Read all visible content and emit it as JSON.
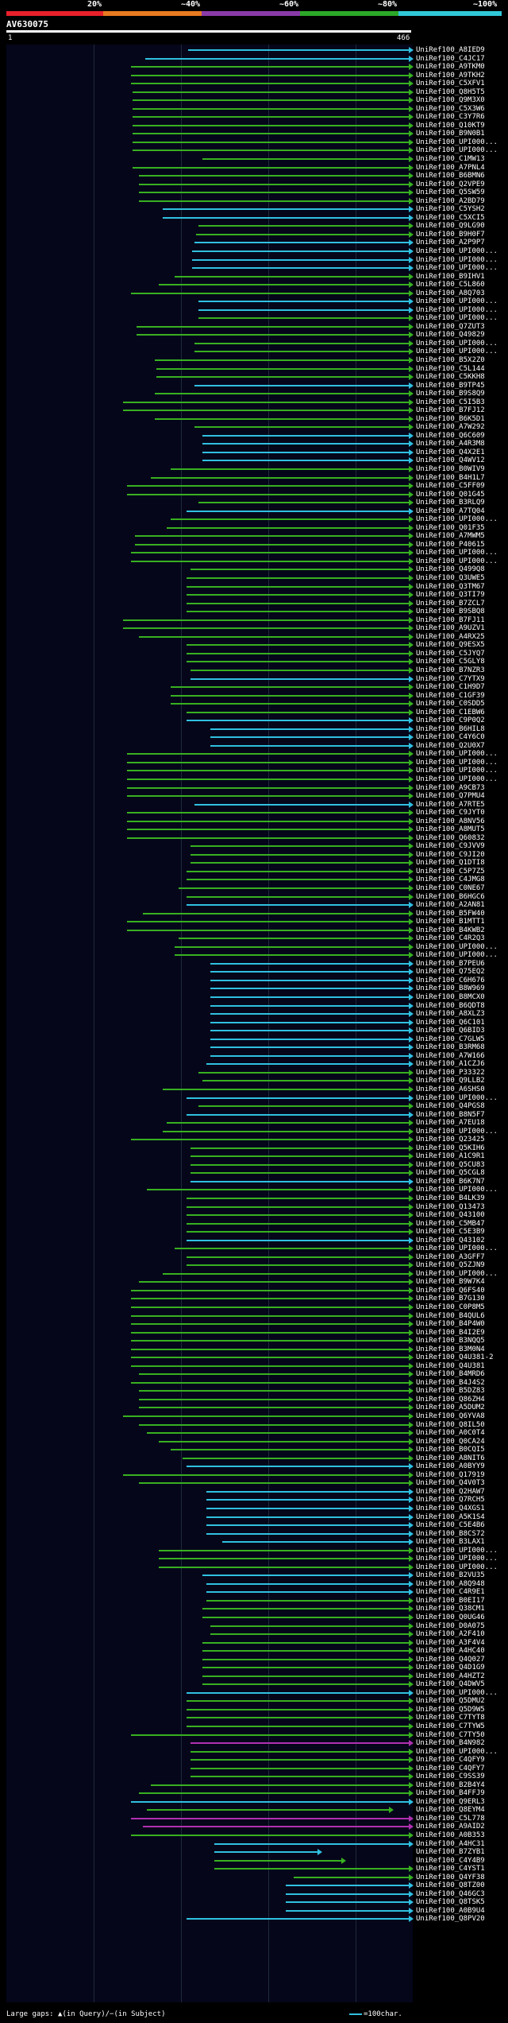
{
  "colors": {
    "red": "#e8202a",
    "orange": "#e87a20",
    "purple": "#8a3aa8",
    "green": "#2ca828",
    "cyan": "#30c8d8"
  },
  "identity_scale": {
    "labels": [
      "20%",
      "~40%",
      "~60%",
      "~80%",
      "~100%"
    ]
  },
  "query": {
    "title": "AV630075",
    "start": "1",
    "end": "466"
  },
  "hits": [
    {
      "label": "UniRef100_A8IED9",
      "c": "b"
    },
    {
      "label": "UniRef100_C4JC17",
      "c": "b"
    },
    {
      "label": "UniRef100_A9TKM0",
      "c": "g"
    },
    {
      "label": "UniRef100_A9TKH2",
      "c": "g"
    },
    {
      "label": "UniRef100_C5XFV1",
      "c": "g"
    },
    {
      "label": "UniRef100_Q8H5T5",
      "c": "g"
    },
    {
      "label": "UniRef100_Q9M3X0",
      "c": "g"
    },
    {
      "label": "UniRef100_C5X3W6",
      "c": "g"
    },
    {
      "label": "UniRef100_C3Y7R6",
      "c": "g"
    },
    {
      "label": "UniRef100_Q10KT9",
      "c": "g"
    },
    {
      "label": "UniRef100_B9N0B1",
      "c": "g"
    },
    {
      "label": "UniRef100_UPI000...",
      "c": "g"
    },
    {
      "label": "UniRef100_UPI000...",
      "c": "g"
    },
    {
      "label": "UniRef100_C1MW13",
      "c": "g"
    },
    {
      "label": "UniRef100_A7PNL4",
      "c": "g"
    },
    {
      "label": "UniRef100_B6BMN6",
      "c": "g"
    },
    {
      "label": "UniRef100_Q2VPE9",
      "c": "g"
    },
    {
      "label": "UniRef100_Q5SW59",
      "c": "g"
    },
    {
      "label": "UniRef100_A2BD79",
      "c": "g"
    },
    {
      "label": "UniRef100_C5YSH2",
      "c": "b"
    },
    {
      "label": "UniRef100_C5XCI5",
      "c": "b"
    },
    {
      "label": "UniRef100_Q9LG90",
      "c": "g"
    },
    {
      "label": "UniRef100_B9H0F7",
      "c": "g"
    },
    {
      "label": "UniRef100_A2P9P7",
      "c": "b"
    },
    {
      "label": "UniRef100_UPI000...",
      "c": "b"
    },
    {
      "label": "UniRef100_UPI000...",
      "c": "b"
    },
    {
      "label": "UniRef100_UPI000...",
      "c": "b"
    },
    {
      "label": "UniRef100_B9IHV1",
      "c": "g"
    },
    {
      "label": "UniRef100_C5L860",
      "c": "g"
    },
    {
      "label": "UniRef100_A8Q703",
      "c": "g"
    },
    {
      "label": "UniRef100_UPI000...",
      "c": "b"
    },
    {
      "label": "UniRef100_UPI000...",
      "c": "b"
    },
    {
      "label": "UniRef100_UPI000...",
      "c": "g"
    },
    {
      "label": "UniRef100_Q7ZUT3",
      "c": "g"
    },
    {
      "label": "UniRef100_Q49829",
      "c": "g"
    },
    {
      "label": "UniRef100_UPI000...",
      "c": "g"
    },
    {
      "label": "UniRef100_UPI000...",
      "c": "g"
    },
    {
      "label": "UniRef100_B5X2Z0",
      "c": "g"
    },
    {
      "label": "UniRef100_C5L144",
      "c": "g"
    },
    {
      "label": "UniRef100_C5KKH8",
      "c": "g"
    },
    {
      "label": "UniRef100_B9TP45",
      "c": "b"
    },
    {
      "label": "UniRef100_B9S8Q9",
      "c": "g"
    },
    {
      "label": "UniRef100_C5I5B3",
      "c": "g"
    },
    {
      "label": "UniRef100_B7FJ12",
      "c": "g"
    },
    {
      "label": "UniRef100_B6K5D1",
      "c": "g"
    },
    {
      "label": "UniRef100_A7W292",
      "c": "g"
    },
    {
      "label": "UniRef100_Q6C609",
      "c": "b"
    },
    {
      "label": "UniRef100_A4R3M8",
      "c": "b"
    },
    {
      "label": "UniRef100_Q4X2E1",
      "c": "b"
    },
    {
      "label": "UniRef100_Q4WV12",
      "c": "b"
    },
    {
      "label": "UniRef100_B0WIV9",
      "c": "g"
    },
    {
      "label": "UniRef100_B4H1L7",
      "c": "g"
    },
    {
      "label": "UniRef100_C5FF09",
      "c": "g"
    },
    {
      "label": "UniRef100_Q01G45",
      "c": "g"
    },
    {
      "label": "UniRef100_B3RLQ9",
      "c": "g"
    },
    {
      "label": "UniRef100_A7TQ04",
      "c": "b"
    },
    {
      "label": "UniRef100_UPI000...",
      "c": "g"
    },
    {
      "label": "UniRef100_Q01F35",
      "c": "g"
    },
    {
      "label": "UniRef100_A7MWM5",
      "c": "g"
    },
    {
      "label": "UniRef100_P40615",
      "c": "g"
    },
    {
      "label": "UniRef100_UPI000...",
      "c": "g"
    },
    {
      "label": "UniRef100_UPI000...",
      "c": "g"
    },
    {
      "label": "UniRef100_Q499Q8",
      "c": "g"
    },
    {
      "label": "UniRef100_Q3UWE5",
      "c": "g"
    },
    {
      "label": "UniRef100_Q3TM67",
      "c": "g"
    },
    {
      "label": "UniRef100_Q3TI79",
      "c": "g"
    },
    {
      "label": "UniRef100_B7ZCL7",
      "c": "g"
    },
    {
      "label": "UniRef100_B9SBQ8",
      "c": "g"
    },
    {
      "label": "UniRef100_B7FJ11",
      "c": "g"
    },
    {
      "label": "UniRef100_A9UZV1",
      "c": "g"
    },
    {
      "label": "UniRef100_A4RX25",
      "c": "g"
    },
    {
      "label": "UniRef100_Q9ESX5",
      "c": "g"
    },
    {
      "label": "UniRef100_C5JYQ7",
      "c": "g"
    },
    {
      "label": "UniRef100_C5GLY8",
      "c": "g"
    },
    {
      "label": "UniRef100_B7NZR3",
      "c": "g"
    },
    {
      "label": "UniRef100_C7YTX9",
      "c": "b"
    },
    {
      "label": "UniRef100_C1H9D7",
      "c": "g"
    },
    {
      "label": "UniRef100_C1GF39",
      "c": "g"
    },
    {
      "label": "UniRef100_C0SDD5",
      "c": "g"
    },
    {
      "label": "UniRef100_C1EBW6",
      "c": "g"
    },
    {
      "label": "UniRef100_C9P0Q2",
      "c": "b"
    },
    {
      "label": "UniRef100_B6HIL8",
      "c": "b"
    },
    {
      "label": "UniRef100_C4Y6C0",
      "c": "b"
    },
    {
      "label": "UniRef100_Q2U0X7",
      "c": "b"
    },
    {
      "label": "UniRef100_UPI000...",
      "c": "g"
    },
    {
      "label": "UniRef100_UPI000...",
      "c": "g"
    },
    {
      "label": "UniRef100_UPI000...",
      "c": "g"
    },
    {
      "label": "UniRef100_UPI000...",
      "c": "g"
    },
    {
      "label": "UniRef100_A9CB73",
      "c": "g"
    },
    {
      "label": "UniRef100_Q7PMU4",
      "c": "g"
    },
    {
      "label": "UniRef100_A7RTE5",
      "c": "b"
    },
    {
      "label": "UniRef100_C9JYT0",
      "c": "g"
    },
    {
      "label": "UniRef100_A8NV56",
      "c": "g"
    },
    {
      "label": "UniRef100_A8MUT5",
      "c": "g"
    },
    {
      "label": "UniRef100_Q60832",
      "c": "g"
    },
    {
      "label": "UniRef100_C9JVV9",
      "c": "g"
    },
    {
      "label": "UniRef100_C9JI20",
      "c": "g"
    },
    {
      "label": "UniRef100_Q1DTI8",
      "c": "g"
    },
    {
      "label": "UniRef100_C5P7Z5",
      "c": "g"
    },
    {
      "label": "UniRef100_C4JMG8",
      "c": "g"
    },
    {
      "label": "UniRef100_C0NE67",
      "c": "g"
    },
    {
      "label": "UniRef100_B6HGC6",
      "c": "g"
    },
    {
      "label": "UniRef100_A2AN81",
      "c": "b"
    },
    {
      "label": "UniRef100_B5FW40",
      "c": "g"
    },
    {
      "label": "UniRef100_B1MTT1",
      "c": "g"
    },
    {
      "label": "UniRef100_B4KWB2",
      "c": "g"
    },
    {
      "label": "UniRef100_C4R2Q3",
      "c": "g"
    },
    {
      "label": "UniRef100_UPI000...",
      "c": "g"
    },
    {
      "label": "UniRef100_UPI000...",
      "c": "g"
    },
    {
      "label": "UniRef100_B7PEU6",
      "c": "b"
    },
    {
      "label": "UniRef100_Q75EQ2",
      "c": "b"
    },
    {
      "label": "UniRef100_C6H676",
      "c": "b"
    },
    {
      "label": "UniRef100_B8W969",
      "c": "b"
    },
    {
      "label": "UniRef100_B8MCX0",
      "c": "b"
    },
    {
      "label": "UniRef100_B6QDT8",
      "c": "b"
    },
    {
      "label": "UniRef100_A8XLZ3",
      "c": "b"
    },
    {
      "label": "UniRef100_Q6C101",
      "c": "b"
    },
    {
      "label": "UniRef100_Q6BID3",
      "c": "b"
    },
    {
      "label": "UniRef100_C7GLW5",
      "c": "b"
    },
    {
      "label": "UniRef100_B3RM68",
      "c": "b"
    },
    {
      "label": "UniRef100_A7W166",
      "c": "b"
    },
    {
      "label": "UniRef100_A1CZJ6",
      "c": "b"
    },
    {
      "label": "UniRef100_P33322",
      "c": "g"
    },
    {
      "label": "UniRef100_Q9LLB2",
      "c": "g"
    },
    {
      "label": "UniRef100_A6SHS0",
      "c": "g"
    },
    {
      "label": "UniRef100_UPI000...",
      "c": "b"
    },
    {
      "label": "UniRef100_Q4PGS8",
      "c": "g"
    },
    {
      "label": "UniRef100_B8N5F7",
      "c": "b"
    },
    {
      "label": "UniRef100_A7EU18",
      "c": "g"
    },
    {
      "label": "UniRef100_UPI000...",
      "c": "g"
    },
    {
      "label": "UniRef100_Q23425",
      "c": "g"
    },
    {
      "label": "UniRef100_Q5KIH6",
      "c": "g"
    },
    {
      "label": "UniRef100_A1C9R1",
      "c": "g"
    },
    {
      "label": "UniRef100_Q5CU83",
      "c": "g"
    },
    {
      "label": "UniRef100_Q5CGL8",
      "c": "g"
    },
    {
      "label": "UniRef100_B6K7N7",
      "c": "b"
    },
    {
      "label": "UniRef100_UPI000...",
      "c": "g"
    },
    {
      "label": "UniRef100_B4LK39",
      "c": "g"
    },
    {
      "label": "UniRef100_Q13473",
      "c": "g"
    },
    {
      "label": "UniRef100_Q43100",
      "c": "g"
    },
    {
      "label": "UniRef100_C5MB47",
      "c": "g"
    },
    {
      "label": "UniRef100_C5E3B9",
      "c": "g"
    },
    {
      "label": "UniRef100_Q43102",
      "c": "b"
    },
    {
      "label": "UniRef100_UPI000...",
      "c": "g"
    },
    {
      "label": "UniRef100_A3GFF7",
      "c": "g"
    },
    {
      "label": "UniRef100_Q5ZJN9",
      "c": "g"
    },
    {
      "label": "UniRef100_UPI000...",
      "c": "g"
    },
    {
      "label": "UniRef100_B9W7K4",
      "c": "g"
    },
    {
      "label": "UniRef100_Q6FS40",
      "c": "g"
    },
    {
      "label": "UniRef100_B7G130",
      "c": "g"
    },
    {
      "label": "UniRef100_C0P8M5",
      "c": "g"
    },
    {
      "label": "UniRef100_B4QUL6",
      "c": "g"
    },
    {
      "label": "UniRef100_B4P4W0",
      "c": "g"
    },
    {
      "label": "UniRef100_B4I2E9",
      "c": "g"
    },
    {
      "label": "UniRef100_B3NQQ5",
      "c": "g"
    },
    {
      "label": "UniRef100_B3M0N4",
      "c": "g"
    },
    {
      "label": "UniRef100_Q4U381-2",
      "c": "g"
    },
    {
      "label": "UniRef100_Q4U381",
      "c": "g"
    },
    {
      "label": "UniRef100_B4MRD6",
      "c": "g"
    },
    {
      "label": "UniRef100_B4J4S2",
      "c": "g"
    },
    {
      "label": "UniRef100_B5DZ83",
      "c": "g"
    },
    {
      "label": "UniRef100_Q86ZH4",
      "c": "g"
    },
    {
      "label": "UniRef100_A5DUM2",
      "c": "g"
    },
    {
      "label": "UniRef100_Q6YVA8",
      "c": "g"
    },
    {
      "label": "UniRef100_Q8IL50",
      "c": "g"
    },
    {
      "label": "UniRef100_A0C0T4",
      "c": "g"
    },
    {
      "label": "UniRef100_Q0CA24",
      "c": "g"
    },
    {
      "label": "UniRef100_B0CQI5",
      "c": "g"
    },
    {
      "label": "UniRef100_A8NIT6",
      "c": "g"
    },
    {
      "label": "UniRef100_A0BYY9",
      "c": "b"
    },
    {
      "label": "UniRef100_Q17919",
      "c": "g"
    },
    {
      "label": "UniRef100_Q4V0T3",
      "c": "g"
    },
    {
      "label": "UniRef100_Q2HAW7",
      "c": "b"
    },
    {
      "label": "UniRef100_Q7RCH5",
      "c": "b"
    },
    {
      "label": "UniRef100_Q4XGS1",
      "c": "b"
    },
    {
      "label": "UniRef100_A5K1S4",
      "c": "b"
    },
    {
      "label": "UniRef100_C5E4B6",
      "c": "b"
    },
    {
      "label": "UniRef100_B8CS72",
      "c": "b"
    },
    {
      "label": "UniRef100_B3LAX1",
      "c": "b"
    },
    {
      "label": "UniRef100_UPI000...",
      "c": "g"
    },
    {
      "label": "UniRef100_UPI000...",
      "c": "g"
    },
    {
      "label": "UniRef100_UPI000...",
      "c": "g"
    },
    {
      "label": "UniRef100_B2VU35",
      "c": "b"
    },
    {
      "label": "UniRef100_A8Q948",
      "c": "b"
    },
    {
      "label": "UniRef100_C4R9E1",
      "c": "b"
    },
    {
      "label": "UniRef100_B0EI17",
      "c": "g"
    },
    {
      "label": "UniRef100_Q38CM1",
      "c": "g"
    },
    {
      "label": "UniRef100_Q0UG46",
      "c": "g"
    },
    {
      "label": "UniRef100_D0A075",
      "c": "g"
    },
    {
      "label": "UniRef100_A2F410",
      "c": "g"
    },
    {
      "label": "UniRef100_A3F4V4",
      "c": "g"
    },
    {
      "label": "UniRef100_A4HC40",
      "c": "g"
    },
    {
      "label": "UniRef100_Q4Q027",
      "c": "g"
    },
    {
      "label": "UniRef100_Q4D1G9",
      "c": "g"
    },
    {
      "label": "UniRef100_A4HZT2",
      "c": "g"
    },
    {
      "label": "UniRef100_Q4DWV5",
      "c": "g"
    },
    {
      "label": "UniRef100_UPI000...",
      "c": "b"
    },
    {
      "label": "UniRef100_Q5DMU2",
      "c": "g"
    },
    {
      "label": "UniRef100_Q5D9W5",
      "c": "g"
    },
    {
      "label": "UniRef100_C7TYT8",
      "c": "g"
    },
    {
      "label": "UniRef100_C7TYW5",
      "c": "g"
    },
    {
      "label": "UniRef100_C7TY50",
      "c": "g"
    },
    {
      "label": "UniRef100_B4N982",
      "c": "m"
    },
    {
      "label": "UniRef100_UPI000...",
      "c": "g"
    },
    {
      "label": "UniRef100_C4QFY9",
      "c": "g"
    },
    {
      "label": "UniRef100_C4QFY7",
      "c": "g"
    },
    {
      "label": "UniRef100_C9SS39",
      "c": "g"
    },
    {
      "label": "UniRef100_B2B4Y4",
      "c": "g"
    },
    {
      "label": "UniRef100_B4FFJ9",
      "c": "g"
    },
    {
      "label": "UniRef100_Q9ERL3",
      "c": "b"
    },
    {
      "label": "UniRef100_Q8EYM4",
      "c": "g"
    },
    {
      "label": "UniRef100_C5L778",
      "c": "m"
    },
    {
      "label": "UniRef100_A9AID2",
      "c": "m"
    },
    {
      "label": "UniRef100_A0B353",
      "c": "g"
    },
    {
      "label": "UniRef100_A4HC31",
      "c": "b"
    },
    {
      "label": "UniRef100_B7ZYB1",
      "c": "b"
    },
    {
      "label": "UniRef100_C4Y4B9",
      "c": "g"
    },
    {
      "label": "UniRef100_C4YST1",
      "c": "g"
    },
    {
      "label": "UniRef100_Q4YF38",
      "c": "g"
    },
    {
      "label": "UniRef100_Q8TZ00",
      "c": "b"
    },
    {
      "label": "UniRef100_Q46GC3",
      "c": "b"
    },
    {
      "label": "UniRef100_Q8TSK5",
      "c": "b"
    },
    {
      "label": "UniRef100_A0B9U4",
      "c": "b"
    },
    {
      "label": "UniRef100_Q8PV20",
      "c": "b"
    }
  ],
  "footer": {
    "left": "Large gaps: ▲(in Query)/−(in Subject)",
    "legend": "=100char."
  }
}
